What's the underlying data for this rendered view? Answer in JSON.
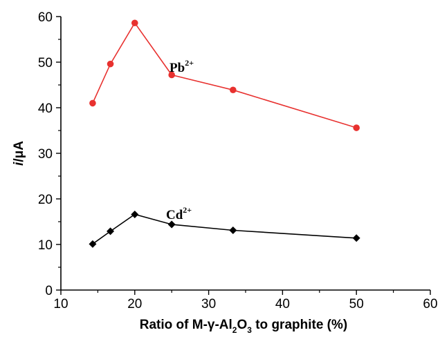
{
  "chart_data": {
    "type": "line",
    "xlabel": "Ratio of M-γ-Al₂O₃ to graphite (%)",
    "ylabel": "i/μA",
    "xlim": [
      10,
      60
    ],
    "ylim": [
      0,
      60
    ],
    "xticks": [
      10,
      20,
      30,
      40,
      50,
      60
    ],
    "yticks": [
      0,
      10,
      20,
      30,
      40,
      50,
      60
    ],
    "grid": false,
    "series": [
      {
        "name": "Pb2+",
        "color": "#e8312f",
        "marker": "circle",
        "x": [
          14.3,
          16.7,
          20,
          25,
          33.3,
          50
        ],
        "y": [
          41.0,
          49.6,
          58.6,
          47.2,
          43.9,
          35.6
        ]
      },
      {
        "name": "Cd2+",
        "color": "#000000",
        "marker": "diamond",
        "x": [
          14.3,
          16.7,
          20,
          25,
          33.3,
          50
        ],
        "y": [
          10.1,
          12.9,
          16.6,
          14.4,
          13.1,
          11.4
        ]
      }
    ]
  },
  "labels": {
    "pb_base": "Pb",
    "pb_charge": "2+",
    "cd_base": "Cd",
    "cd_charge": "2+",
    "y_italic": "i",
    "y_rest": "/μA",
    "x_part1": "Ratio of M-γ-Al",
    "x_sub1": "2",
    "x_part2": "O",
    "x_sub2": "3",
    "x_part3": " to graphite (%)"
  }
}
